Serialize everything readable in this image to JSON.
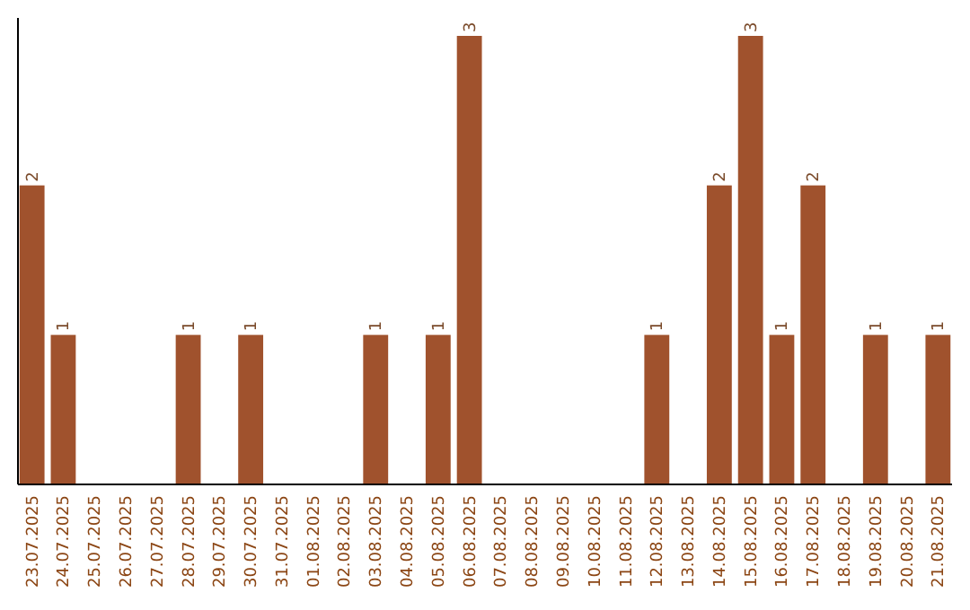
{
  "chart_data": {
    "type": "bar",
    "categories": [
      "23.07.2025",
      "24.07.2025",
      "25.07.2025",
      "26.07.2025",
      "27.07.2025",
      "28.07.2025",
      "29.07.2025",
      "30.07.2025",
      "31.07.2025",
      "01.08.2025",
      "02.08.2025",
      "03.08.2025",
      "04.08.2025",
      "05.08.2025",
      "06.08.2025",
      "07.08.2025",
      "08.08.2025",
      "09.08.2025",
      "10.08.2025",
      "11.08.2025",
      "12.08.2025",
      "13.08.2025",
      "14.08.2025",
      "15.08.2025",
      "16.08.2025",
      "17.08.2025",
      "18.08.2025",
      "19.08.2025",
      "20.08.2025",
      "21.08.2025"
    ],
    "values": [
      2,
      1,
      0,
      0,
      0,
      1,
      0,
      1,
      0,
      0,
      0,
      1,
      0,
      1,
      3,
      0,
      0,
      0,
      0,
      0,
      1,
      0,
      2,
      3,
      1,
      2,
      0,
      1,
      0,
      1
    ],
    "value_labels": [
      "2",
      "1",
      null,
      null,
      null,
      "1",
      null,
      "1",
      null,
      null,
      null,
      "1",
      null,
      "1",
      "3",
      null,
      null,
      null,
      null,
      null,
      "1",
      null,
      "2",
      "3",
      "1",
      "2",
      null,
      "1",
      null,
      "1"
    ],
    "color": "#a0522d",
    "tick_labels": "x"
  }
}
